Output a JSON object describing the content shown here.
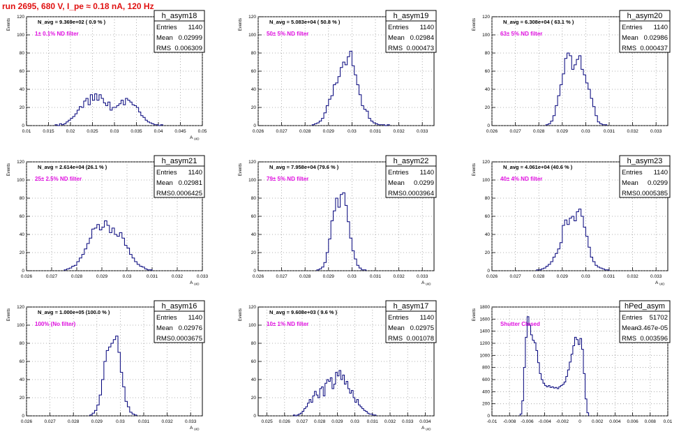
{
  "page_title": "run 2695,   680 V, I_pe ≈ 0.18 nA, 120 Hz",
  "chart_data": [
    {
      "type": "histogram",
      "title": "h_asym18",
      "stats": {
        "Entries": "1140",
        "Mean": "0.02999",
        "RMS": "0.006309"
      },
      "navg": "N_avg = 9.369e+02  ( 0.9 % )",
      "filter": "1± 0.1% ND filter",
      "xlabel": "A_UID",
      "ylabel": "Events",
      "xlim": [
        0.01,
        0.05
      ],
      "ylim": [
        0,
        120
      ],
      "xticks": [
        "0.01",
        "0.015",
        "0.02",
        "0.025",
        "0.03",
        "0.035",
        "0.04",
        "0.045",
        "0.05"
      ],
      "yticks": [
        "0",
        "20",
        "40",
        "60",
        "80",
        "100",
        "120"
      ],
      "bins": {
        "x0": 0.0165,
        "width": 0.0005,
        "values": [
          1,
          0,
          2,
          1,
          2,
          4,
          6,
          8,
          10,
          13,
          17,
          21,
          20,
          27,
          30,
          23,
          34,
          28,
          35,
          28,
          34,
          30,
          25,
          22,
          26,
          17,
          20,
          20,
          22,
          24,
          28,
          23,
          30,
          28,
          26,
          23,
          22,
          20,
          15,
          11,
          9,
          6,
          4,
          3,
          2,
          1,
          1,
          0,
          1
        ]
      }
    },
    {
      "type": "histogram",
      "title": "h_asym19",
      "stats": {
        "Entries": "1140",
        "Mean": "0.02984",
        "RMS": "0.000473"
      },
      "navg": "N_avg = 5.083e+04  ( 50.8 % )",
      "filter": "50± 5% ND filter",
      "xlabel": "",
      "ylabel": "Events",
      "xlim": [
        0.026,
        0.0335
      ],
      "ylim": [
        0,
        120
      ],
      "xticks": [
        "0.026",
        "0.027",
        "0.028",
        "0.029",
        "0.03",
        "0.031",
        "0.032",
        "0.033"
      ],
      "yticks": [
        "0",
        "20",
        "40",
        "60",
        "80",
        "100",
        "120"
      ],
      "bins": {
        "x0": 0.0283,
        "width": 0.0001,
        "values": [
          1,
          2,
          3,
          5,
          8,
          14,
          22,
          29,
          33,
          45,
          47,
          54,
          64,
          70,
          67,
          76,
          82,
          66,
          56,
          45,
          34,
          22,
          18,
          16,
          8,
          5,
          3,
          2,
          1,
          1,
          1,
          0,
          1
        ]
      }
    },
    {
      "type": "histogram",
      "title": "h_asym20",
      "stats": {
        "Entries": "1140",
        "Mean": "0.02986",
        "RMS": "0.000437"
      },
      "navg": "N_avg = 6.308e+04  ( 63.1 % )",
      "filter": "63± 5% ND filter",
      "xlabel": "",
      "ylabel": "Events",
      "xlim": [
        0.026,
        0.0335
      ],
      "ylim": [
        0,
        120
      ],
      "xticks": [
        "0.026",
        "0.027",
        "0.028",
        "0.029",
        "0.03",
        "0.031",
        "0.032",
        "0.033"
      ],
      "yticks": [
        "0",
        "20",
        "40",
        "60",
        "80",
        "100",
        "120"
      ],
      "bins": {
        "x0": 0.0283,
        "width": 0.0001,
        "values": [
          1,
          2,
          5,
          11,
          22,
          33,
          45,
          57,
          74,
          80,
          77,
          62,
          67,
          73,
          77,
          62,
          56,
          47,
          40,
          30,
          21,
          11,
          4,
          2,
          1,
          1
        ]
      }
    },
    {
      "type": "histogram",
      "title": "h_asym21",
      "stats": {
        "Entries": "1140",
        "Mean": "0.02981",
        "RMS": "0.0006425"
      },
      "navg": "N_avg = 2.614e+04  (26.1 % )",
      "filter": "25± 2.5% ND filter",
      "xlabel": "A_UID",
      "ylabel": "Events",
      "xlim": [
        0.026,
        0.033
      ],
      "ylim": [
        0,
        120
      ],
      "xticks": [
        "0.026",
        "0.027",
        "0.028",
        "0.029",
        "0.03",
        "0.031",
        "0.032",
        "0.033"
      ],
      "yticks": [
        "0",
        "20",
        "40",
        "60",
        "80",
        "100",
        "120"
      ],
      "bins": {
        "x0": 0.0275,
        "width": 0.0001,
        "values": [
          1,
          2,
          3,
          5,
          6,
          10,
          14,
          18,
          24,
          30,
          36,
          46,
          47,
          51,
          45,
          48,
          55,
          50,
          42,
          47,
          40,
          38,
          42,
          36,
          28,
          25,
          18,
          14,
          10,
          7,
          5,
          4,
          2,
          1,
          1
        ]
      }
    },
    {
      "type": "histogram",
      "title": "h_asym22",
      "stats": {
        "Entries": "1140",
        "Mean": "0.0299",
        "RMS": "0.0003964"
      },
      "navg": "N_avg = 7.958e+04  (79.6 % )",
      "filter": "79± 5% ND filter",
      "xlabel": "A_UID",
      "ylabel": "Events",
      "xlim": [
        0.026,
        0.0335
      ],
      "ylim": [
        0,
        120
      ],
      "xticks": [
        "0.026",
        "0.027",
        "0.028",
        "0.029",
        "0.03",
        "0.031",
        "0.032",
        "0.033"
      ],
      "yticks": [
        "0",
        "20",
        "40",
        "60",
        "80",
        "100",
        "120"
      ],
      "bins": {
        "x0": 0.0285,
        "width": 0.0001,
        "values": [
          1,
          2,
          4,
          9,
          20,
          35,
          55,
          66,
          80,
          70,
          84,
          86,
          72,
          54,
          36,
          22,
          13,
          6,
          3,
          1,
          1
        ]
      }
    },
    {
      "type": "histogram",
      "title": "h_asym23",
      "stats": {
        "Entries": "1140",
        "Mean": "0.0299",
        "RMS": "0.0005385"
      },
      "navg": "N_avg = 4.061e+04  (40.6 % )",
      "filter": "40± 4% ND filter",
      "xlabel": "A_UID",
      "ylabel": "Events",
      "xlim": [
        0.026,
        0.0335
      ],
      "ylim": [
        0,
        120
      ],
      "xticks": [
        "0.026",
        "0.027",
        "0.028",
        "0.029",
        "0.03",
        "0.031",
        "0.032",
        "0.033"
      ],
      "yticks": [
        "0",
        "20",
        "40",
        "60",
        "80",
        "100",
        "120"
      ],
      "bins": {
        "x0": 0.0279,
        "width": 0.0001,
        "values": [
          1,
          1,
          2,
          3,
          5,
          7,
          10,
          15,
          19,
          24,
          31,
          50,
          56,
          51,
          58,
          60,
          55,
          65,
          68,
          60,
          48,
          38,
          26,
          15,
          10,
          6,
          4,
          3,
          2,
          1,
          1
        ]
      }
    },
    {
      "type": "histogram",
      "title": "h_asym16",
      "stats": {
        "Entries": "1140",
        "Mean": "0.02976",
        "RMS": "0.0003675"
      },
      "navg": "N_avg = 1.000e+05  (100.0 % )",
      "filter": "100% (No filter)",
      "xlabel": "A_UID",
      "ylabel": "Events",
      "xlim": [
        0.026,
        0.0335
      ],
      "ylim": [
        0,
        120
      ],
      "xticks": [
        "0.026",
        "0.027",
        "0.028",
        "0.029",
        "0.03",
        "0.031",
        "0.032",
        "0.033"
      ],
      "yticks": [
        "0",
        "20",
        "40",
        "60",
        "80",
        "100",
        "120"
      ],
      "bins": {
        "x0": 0.0287,
        "width": 0.0001,
        "values": [
          1,
          3,
          6,
          12,
          23,
          40,
          60,
          72,
          76,
          80,
          84,
          88,
          70,
          48,
          32,
          16,
          10,
          4,
          2,
          1
        ]
      }
    },
    {
      "type": "histogram",
      "title": "h_asym17",
      "stats": {
        "Entries": "1140",
        "Mean": "0.02975",
        "RMS": "0.001078"
      },
      "navg": "N_avg = 9.608e+03  ( 9.6 % )",
      "filter": "10± 1% ND filter",
      "xlabel": "A_UID",
      "ylabel": "Events",
      "xlim": [
        0.0245,
        0.0345
      ],
      "ylim": [
        0,
        120
      ],
      "xticks": [
        "0.025",
        "0.026",
        "0.027",
        "0.028",
        "0.029",
        "0.03",
        "0.031",
        "0.032",
        "0.033",
        "0.034"
      ],
      "yticks": [
        "0",
        "20",
        "40",
        "60",
        "80",
        "100",
        "120"
      ],
      "bins": {
        "x0": 0.0265,
        "width": 0.0001,
        "values": [
          1,
          0,
          1,
          2,
          3,
          5,
          8,
          10,
          14,
          18,
          15,
          22,
          27,
          23,
          20,
          30,
          32,
          22,
          36,
          40,
          38,
          42,
          30,
          35,
          48,
          44,
          50,
          40,
          45,
          35,
          38,
          30,
          25,
          28,
          20,
          15,
          18,
          12,
          10,
          8,
          6,
          5,
          3,
          2,
          2,
          1,
          1
        ]
      }
    },
    {
      "type": "histogram",
      "title": "hPed_asym",
      "stats": {
        "Entries": "51702",
        "Mean": "-3.467e-05",
        "RMS": "0.003596"
      },
      "navg": "",
      "filter": "Shutter Closed",
      "xlabel": "",
      "ylabel": "Events",
      "xlim": [
        -0.01,
        0.01
      ],
      "ylim": [
        0,
        1800
      ],
      "xticks": [
        "-0.01",
        "-0.008",
        "-0.006",
        "-0.004",
        "-0.002",
        "0",
        "0.002",
        "0.004",
        "0.006",
        "0.008",
        "0.01"
      ],
      "yticks": [
        "0",
        "200",
        "400",
        "600",
        "800",
        "1000",
        "1200",
        "1400",
        "1600",
        "1800"
      ],
      "bins": {
        "x0": -0.0068,
        "width": 0.0002,
        "values": [
          30,
          250,
          800,
          1300,
          1640,
          1500,
          1340,
          1250,
          1210,
          1080,
          880,
          700,
          600,
          540,
          500,
          480,
          500,
          470,
          480,
          460,
          470,
          450,
          480,
          500,
          520,
          560,
          650,
          760,
          890,
          1020,
          1160,
          1300,
          1260,
          1180,
          1280,
          1100,
          700,
          280,
          50
        ]
      }
    }
  ]
}
